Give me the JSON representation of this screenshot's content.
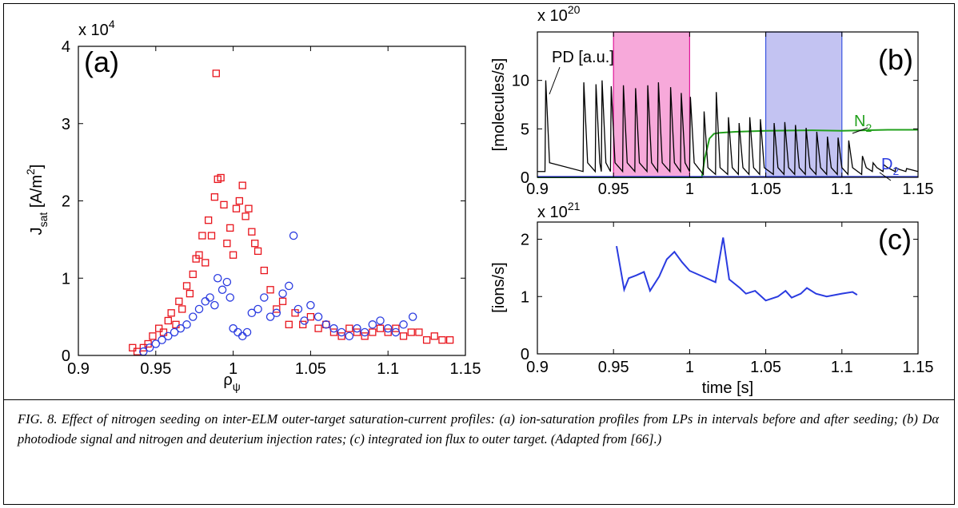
{
  "chart_data": [
    {
      "type": "scatter",
      "tag": "(a)",
      "multiplier": [
        {
          "text": "x 10"
        },
        {
          "text": "4",
          "script": "sup"
        }
      ],
      "ylabel": [
        {
          "text": "J"
        },
        {
          "text": "sat",
          "script": "sub"
        },
        {
          "text": " [A/m"
        },
        {
          "text": "2",
          "script": "sup"
        },
        {
          "text": "]"
        }
      ],
      "xlabel": [
        {
          "text": "ρ"
        },
        {
          "text": "ψ",
          "script": "sub"
        }
      ],
      "xlim": [
        0.9,
        1.15
      ],
      "xticks": [
        0.9,
        0.95,
        1,
        1.05,
        1.1,
        1.15
      ],
      "ylim": [
        0,
        4
      ],
      "yticks": [
        0,
        1,
        2,
        3,
        4
      ],
      "series": [
        {
          "color": "#e8141c",
          "marker": "square",
          "x": [
            0.935,
            0.938,
            0.942,
            0.945,
            0.948,
            0.952,
            0.955,
            0.958,
            0.96,
            0.963,
            0.965,
            0.967,
            0.97,
            0.972,
            0.974,
            0.976,
            0.978,
            0.98,
            0.982,
            0.984,
            0.986,
            0.988,
            0.989,
            0.99,
            0.992,
            0.994,
            0.996,
            0.998,
            1.0,
            1.002,
            1.004,
            1.006,
            1.008,
            1.01,
            1.012,
            1.014,
            1.016,
            1.02,
            1.024,
            1.028,
            1.032,
            1.036,
            1.04,
            1.045,
            1.05,
            1.055,
            1.06,
            1.065,
            1.07,
            1.075,
            1.08,
            1.085,
            1.09,
            1.095,
            1.1,
            1.105,
            1.11,
            1.115,
            1.12,
            1.125,
            1.13,
            1.135,
            1.14
          ],
          "values": [
            0.1,
            0.05,
            0.1,
            0.15,
            0.25,
            0.35,
            0.3,
            0.45,
            0.55,
            0.4,
            0.7,
            0.6,
            0.9,
            0.8,
            1.05,
            1.25,
            1.3,
            1.55,
            1.2,
            1.75,
            1.55,
            2.05,
            3.65,
            2.28,
            2.3,
            1.95,
            1.45,
            1.65,
            1.3,
            1.9,
            2.0,
            2.2,
            1.8,
            1.9,
            1.6,
            1.45,
            1.35,
            1.1,
            0.85,
            0.6,
            0.7,
            0.4,
            0.55,
            0.4,
            0.5,
            0.35,
            0.4,
            0.3,
            0.25,
            0.35,
            0.3,
            0.25,
            0.3,
            0.35,
            0.3,
            0.35,
            0.25,
            0.3,
            0.3,
            0.2,
            0.25,
            0.2,
            0.2
          ]
        },
        {
          "color": "#2a3be0",
          "marker": "circle",
          "x": [
            0.942,
            0.946,
            0.95,
            0.954,
            0.958,
            0.962,
            0.966,
            0.97,
            0.974,
            0.978,
            0.982,
            0.985,
            0.988,
            0.99,
            0.993,
            0.996,
            0.998,
            1.0,
            1.003,
            1.006,
            1.009,
            1.012,
            1.016,
            1.02,
            1.024,
            1.028,
            1.032,
            1.036,
            1.039,
            1.042,
            1.046,
            1.05,
            1.055,
            1.06,
            1.065,
            1.07,
            1.075,
            1.08,
            1.085,
            1.09,
            1.095,
            1.1,
            1.105,
            1.11,
            1.116
          ],
          "values": [
            0.05,
            0.1,
            0.15,
            0.2,
            0.25,
            0.3,
            0.35,
            0.4,
            0.5,
            0.6,
            0.7,
            0.75,
            0.65,
            1.0,
            0.85,
            0.95,
            0.75,
            0.35,
            0.3,
            0.25,
            0.3,
            0.55,
            0.6,
            0.75,
            0.5,
            0.55,
            0.8,
            0.9,
            1.55,
            0.6,
            0.45,
            0.65,
            0.5,
            0.4,
            0.35,
            0.3,
            0.25,
            0.35,
            0.3,
            0.4,
            0.45,
            0.35,
            0.3,
            0.4,
            0.5
          ]
        }
      ]
    },
    {
      "type": "line",
      "tag": "(b)",
      "multiplier": [
        {
          "text": "x 10"
        },
        {
          "text": "20",
          "script": "sup"
        }
      ],
      "ylabel": [
        {
          "text": "[molecules/s]"
        }
      ],
      "xlim": [
        0.9,
        1.15
      ],
      "xticks": [
        0.9,
        0.95,
        1,
        1.05,
        1.1,
        1.15
      ],
      "ylim": [
        0,
        15
      ],
      "yticks": [
        0,
        5,
        10
      ],
      "regions": [
        {
          "x": [
            0.95,
            1.0
          ],
          "color": "#f7a9da",
          "edge": "#e0179a"
        },
        {
          "x": [
            1.05,
            1.1
          ],
          "color": "#c3c3f2",
          "edge": "#3a55e0"
        }
      ],
      "annotations": [
        [
          {
            "text": "PD [a.u.]"
          }
        ],
        [
          {
            "text": "N"
          },
          {
            "text": "2",
            "script": "sub"
          }
        ],
        [
          {
            "text": "D"
          },
          {
            "text": "2",
            "script": "sub"
          }
        ]
      ],
      "series": [
        {
          "color": "#22a01c",
          "x": [
            0.9,
            1.008,
            1.01,
            1.013,
            1.016,
            1.02,
            1.03,
            1.05,
            1.08,
            1.1,
            1.13,
            1.15
          ],
          "values": [
            0,
            0,
            2,
            4,
            4.5,
            4.6,
            4.7,
            4.8,
            4.85,
            4.8,
            4.9,
            4.9
          ]
        },
        {
          "color": "#2a3be0",
          "x": [
            0.9,
            1.15
          ],
          "values": [
            0.05,
            0.05
          ]
        },
        {
          "color": "#000000",
          "x": [
            0.9,
            0.905,
            0.9055,
            0.908,
            0.93,
            0.9305,
            0.933,
            0.938,
            0.9385,
            0.941,
            0.942,
            0.9425,
            0.945,
            0.948,
            0.9485,
            0.951,
            0.956,
            0.9565,
            0.959,
            0.964,
            0.9645,
            0.967,
            0.972,
            0.9725,
            0.975,
            0.979,
            0.9795,
            0.982,
            0.987,
            0.9875,
            0.99,
            0.994,
            0.9945,
            0.997,
            1.0,
            1.0005,
            1.003,
            1.009,
            1.0095,
            1.012,
            1.017,
            1.0175,
            1.02,
            1.025,
            1.0255,
            1.028,
            1.032,
            1.0325,
            1.035,
            1.039,
            1.0395,
            1.042,
            1.046,
            1.0465,
            1.049,
            1.055,
            1.0555,
            1.058,
            1.062,
            1.0625,
            1.065,
            1.069,
            1.0695,
            1.072,
            1.076,
            1.0765,
            1.079,
            1.083,
            1.0835,
            1.086,
            1.09,
            1.0905,
            1.093,
            1.097,
            1.0975,
            1.1,
            1.104,
            1.1045,
            1.107,
            1.113,
            1.1135,
            1.116,
            1.12,
            1.1205,
            1.123,
            1.127,
            1.1275,
            1.13,
            1.135,
            1.1355,
            1.138,
            1.142,
            1.1425,
            1.145,
            1.15
          ],
          "values": [
            0.6,
            0.6,
            10,
            1.5,
            0.6,
            9.8,
            1.5,
            0.6,
            9.6,
            1.5,
            0.6,
            10,
            1.5,
            0.6,
            9.4,
            1.5,
            0.6,
            9.5,
            1.5,
            0.6,
            9.2,
            1.5,
            0.6,
            9.5,
            1.5,
            0.6,
            9.8,
            1.5,
            0.6,
            9.3,
            1.5,
            0.6,
            8.7,
            1.5,
            0.6,
            8.3,
            1.5,
            0.3,
            6.8,
            1.0,
            0.3,
            8.8,
            1.0,
            0.3,
            6.2,
            1.0,
            0.3,
            5.6,
            1.0,
            0.3,
            6.2,
            1.0,
            0.3,
            6.0,
            1.0,
            0.3,
            5.6,
            1.0,
            0.3,
            5.7,
            1.0,
            0.3,
            5.4,
            1.0,
            0.3,
            5.1,
            1.0,
            0.3,
            4.7,
            1.0,
            0.3,
            4.2,
            1.0,
            0.3,
            4.1,
            1.0,
            0.3,
            3.8,
            1.0,
            0.3,
            2.2,
            1.0,
            0.6,
            1.5,
            1.0,
            0.6,
            1.3,
            1.0,
            0.6,
            1.0,
            0.8,
            0.6,
            0.9,
            0.8,
            0.6
          ]
        }
      ]
    },
    {
      "type": "line",
      "tag": "(c)",
      "multiplier": [
        {
          "text": "x 10"
        },
        {
          "text": "21",
          "script": "sup"
        }
      ],
      "ylabel": [
        {
          "text": "[ions/s]"
        }
      ],
      "xlabel": [
        {
          "text": "time [s]"
        }
      ],
      "xlim": [
        0.9,
        1.15
      ],
      "xticks": [
        0.9,
        0.95,
        1,
        1.05,
        1.1,
        1.15
      ],
      "ylim": [
        0,
        2.3
      ],
      "yticks": [
        0,
        1,
        2
      ],
      "series": [
        {
          "color": "#2a3be0",
          "x": [
            0.952,
            0.957,
            0.96,
            0.965,
            0.97,
            0.974,
            0.98,
            0.985,
            0.99,
            0.995,
            1.0,
            1.017,
            1.022,
            1.026,
            1.033,
            1.037,
            1.043,
            1.05,
            1.058,
            1.063,
            1.067,
            1.073,
            1.077,
            1.083,
            1.09,
            1.1,
            1.107,
            1.11
          ],
          "values": [
            1.88,
            1.12,
            1.32,
            1.37,
            1.43,
            1.1,
            1.35,
            1.65,
            1.78,
            1.6,
            1.45,
            1.25,
            2.03,
            1.3,
            1.15,
            1.05,
            1.1,
            0.93,
            1.0,
            1.1,
            0.98,
            1.05,
            1.15,
            1.05,
            1.0,
            1.05,
            1.08,
            1.03
          ]
        }
      ]
    }
  ],
  "caption": "FIG. 8. Effect of nitrogen seeding on inter-ELM outer-target saturation-current profiles: (a) ion-saturation profiles from LPs in intervals before and after seeding; (b) Dα photodiode signal and nitrogen and deuterium injection rates; (c) integrated ion flux to outer target. (Adapted from [66].)"
}
